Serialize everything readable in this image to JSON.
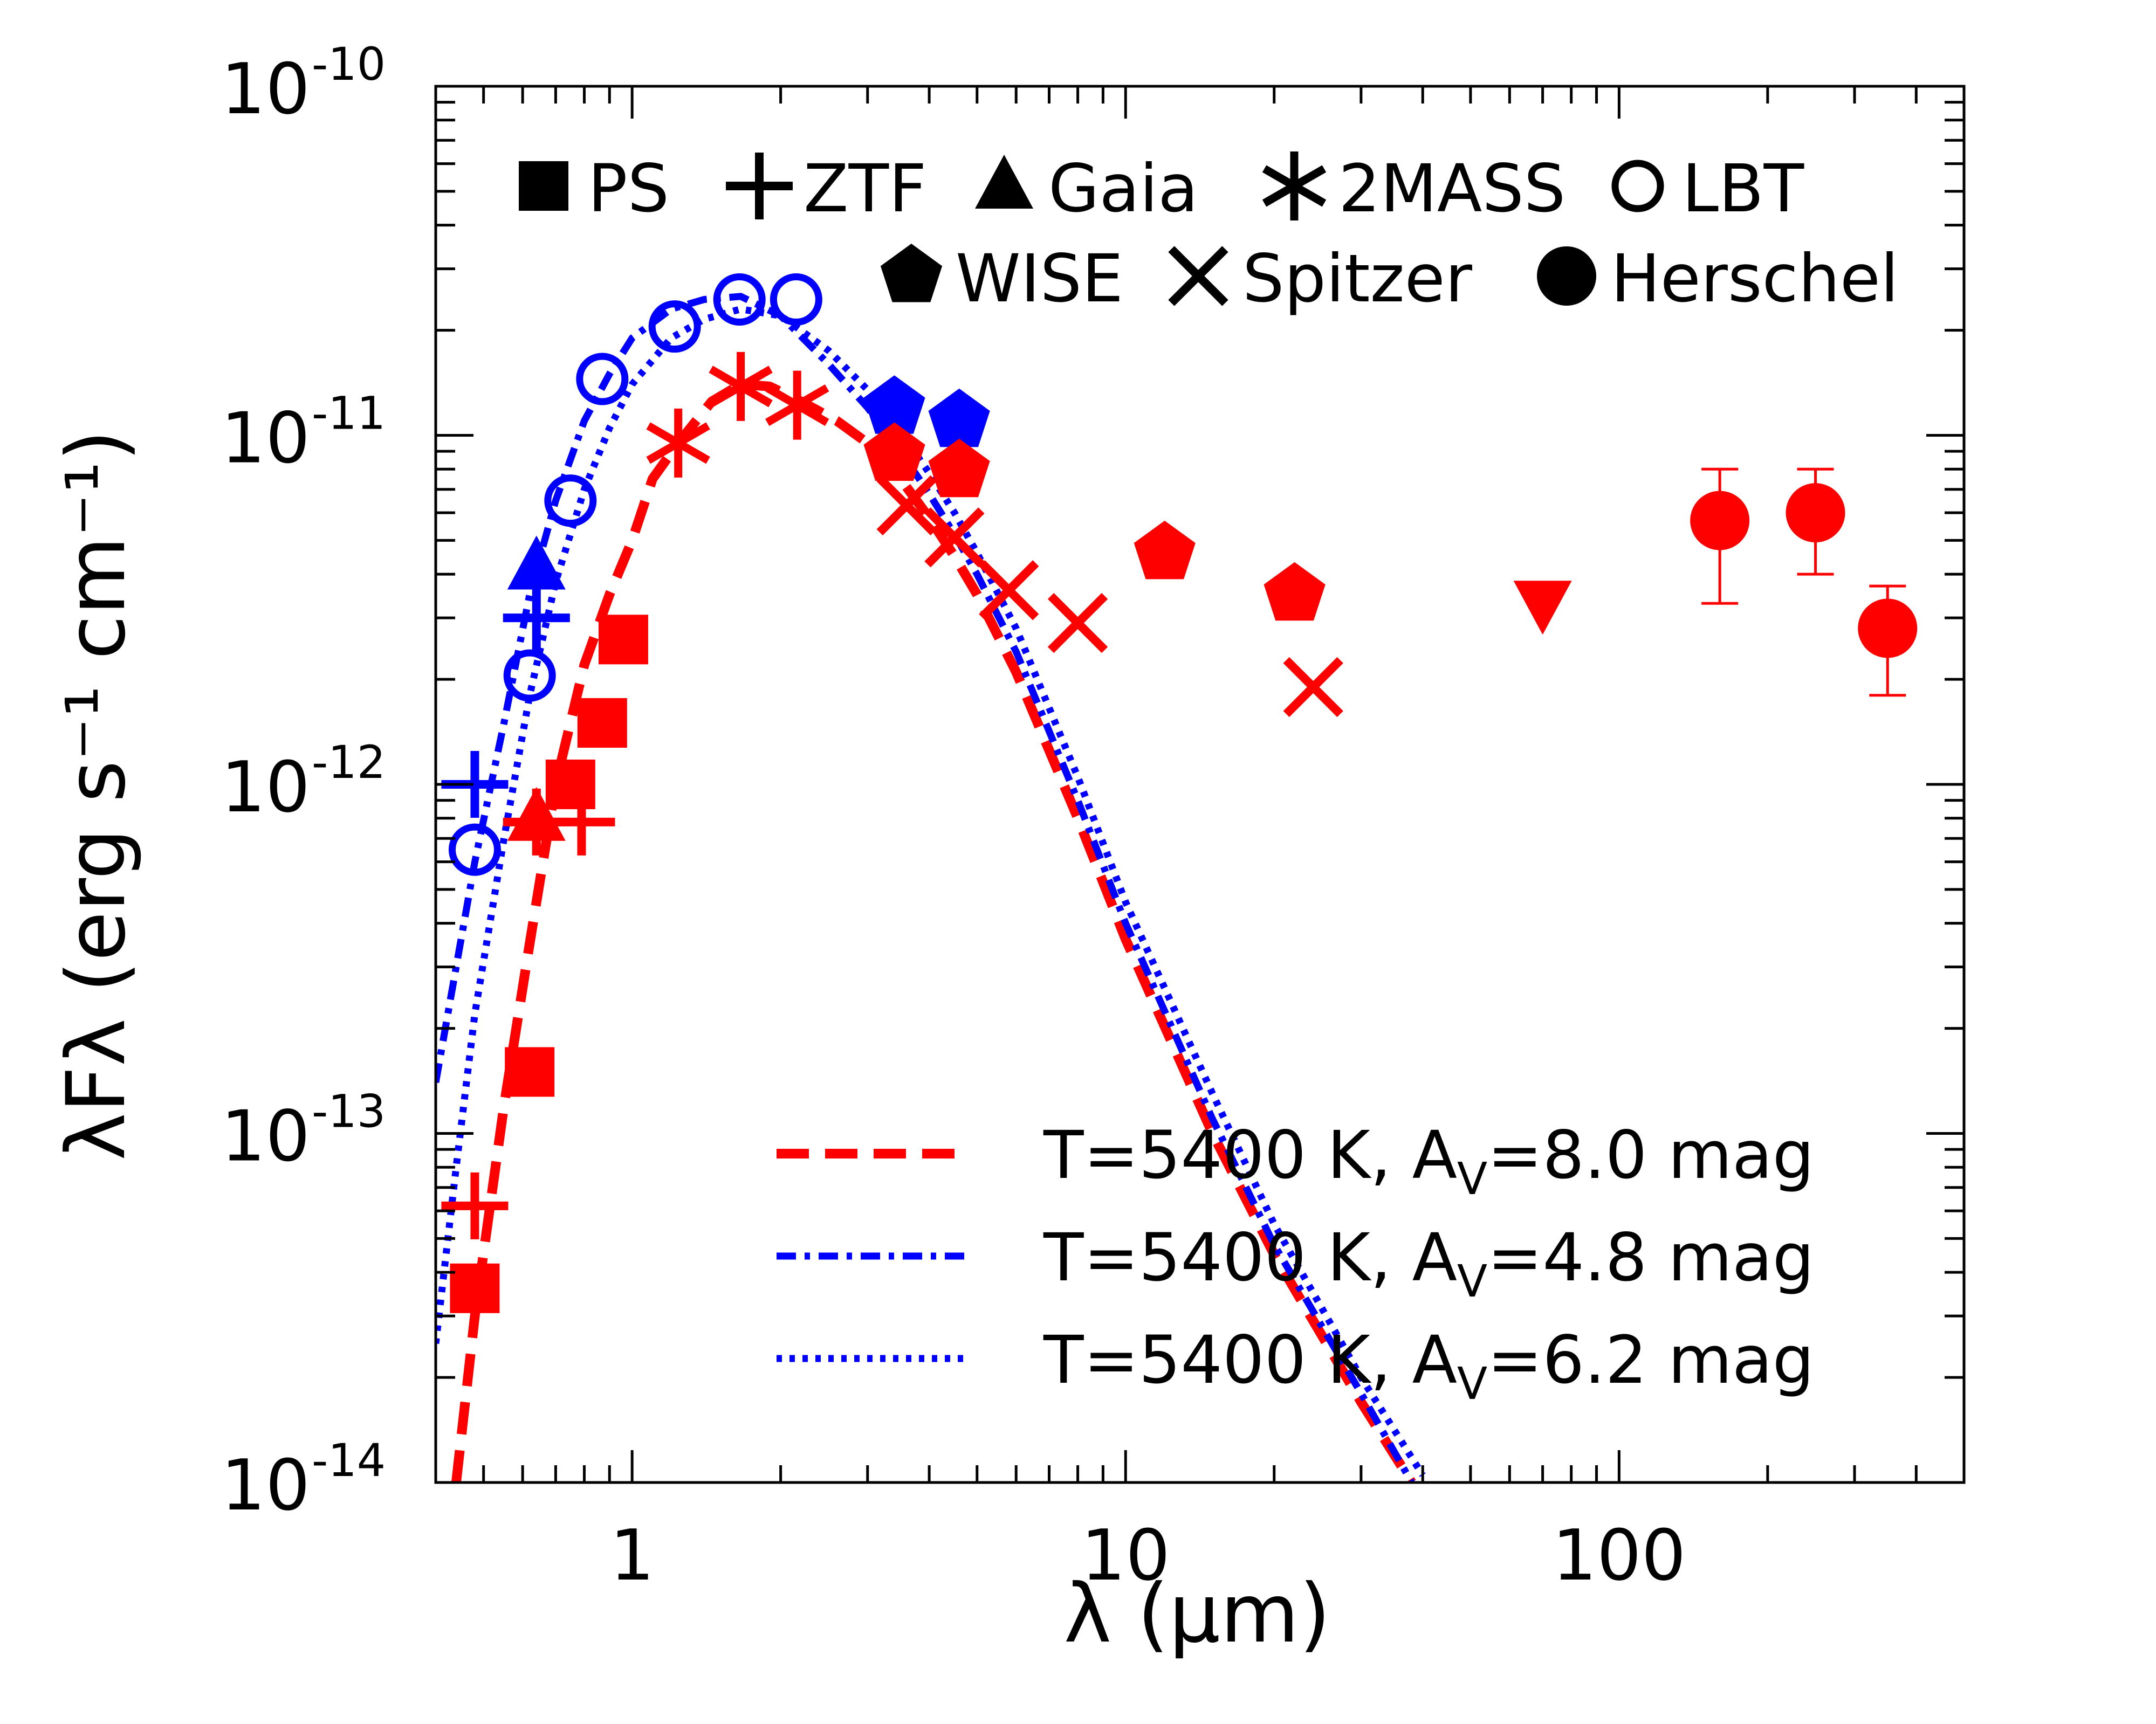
{
  "chart_data": {
    "type": "scatter",
    "title": "",
    "xlabel": "λ (μm)",
    "ylabel": "λFλ (erg s⁻¹ cm⁻¹)",
    "xscale": "log",
    "yscale": "log",
    "xlim": [
      0.4,
      500
    ],
    "ylim": [
      1e-14,
      1e-10
    ],
    "x_ticks": [
      {
        "value": 1,
        "label": "1"
      },
      {
        "value": 10,
        "label": "10"
      },
      {
        "value": 100,
        "label": "100"
      }
    ],
    "y_ticks": [
      {
        "value": 1e-10,
        "base": "10",
        "exp": "-10"
      },
      {
        "value": 1e-11,
        "base": "10",
        "exp": "-11"
      },
      {
        "value": 1e-12,
        "base": "10",
        "exp": "-12"
      },
      {
        "value": 1e-13,
        "base": "10",
        "exp": "-13"
      },
      {
        "value": 1e-14,
        "base": "10",
        "exp": "-14"
      }
    ],
    "colors": {
      "red": "#ff0000",
      "blue": "#0000ff",
      "black": "#000000"
    },
    "marker_legend": [
      {
        "label": "PS",
        "marker": "square"
      },
      {
        "label": "ZTF",
        "marker": "plus"
      },
      {
        "label": "Gaia",
        "marker": "triangle"
      },
      {
        "label": "2MASS",
        "marker": "star"
      },
      {
        "label": "LBT",
        "marker": "open-circle"
      },
      {
        "label": "WISE",
        "marker": "pentagon"
      },
      {
        "label": "Spitzer",
        "marker": "x"
      },
      {
        "label": "Herschel",
        "marker": "circle"
      }
    ],
    "line_legend": [
      {
        "text": "T=5400 K, A",
        "sub": "V",
        "text2": "=8.0 mag",
        "color": "#ff0000",
        "style": "dashed"
      },
      {
        "text": "T=5400 K, A",
        "sub": "V",
        "text2": "=4.8 mag",
        "color": "#0000ff",
        "style": "dashdot"
      },
      {
        "text": "T=5400 K, A",
        "sub": "V",
        "text2": "=6.2 mag",
        "color": "#0000ff",
        "style": "dotted"
      }
    ],
    "points": [
      {
        "survey": "PS",
        "marker": "square",
        "color": "red",
        "x": [
          0.48,
          0.62,
          0.75,
          0.87,
          0.96
        ],
        "y": [
          3.6e-14,
          1.5e-13,
          1e-12,
          1.5e-12,
          2.6e-12
        ]
      },
      {
        "survey": "ZTF",
        "marker": "plus",
        "color": "red",
        "x": [
          0.48,
          0.64,
          0.79
        ],
        "y": [
          6.2e-14,
          7.8e-13,
          7.8e-13
        ]
      },
      {
        "survey": "ZTF",
        "marker": "plus",
        "color": "blue",
        "x": [
          0.48,
          0.64
        ],
        "y": [
          1e-12,
          3e-12
        ]
      },
      {
        "survey": "Gaia",
        "marker": "triangle",
        "color": "red",
        "x": [
          0.64
        ],
        "y": [
          8e-13
        ]
      },
      {
        "survey": "Gaia",
        "marker": "triangle",
        "color": "blue",
        "x": [
          0.64
        ],
        "y": [
          4.2e-12
        ]
      },
      {
        "survey": "2MASS",
        "marker": "star",
        "color": "red",
        "x": [
          1.24,
          1.66,
          2.16
        ],
        "y": [
          9.5e-12,
          1.38e-11,
          1.22e-11
        ]
      },
      {
        "survey": "LBT",
        "marker": "open-circle",
        "color": "blue",
        "x": [
          0.48,
          0.62,
          0.75,
          0.87,
          1.22,
          1.65,
          2.15
        ],
        "y": [
          6.5e-13,
          2.05e-12,
          6.5e-12,
          1.45e-11,
          2.05e-11,
          2.45e-11,
          2.45e-11
        ]
      },
      {
        "survey": "WISE",
        "marker": "pentagon",
        "color": "blue",
        "x": [
          3.4,
          4.6
        ],
        "y": [
          1.2e-11,
          1.1e-11
        ]
      },
      {
        "survey": "WISE",
        "marker": "pentagon",
        "color": "red",
        "x": [
          3.4,
          4.6,
          12,
          22
        ],
        "y": [
          8.8e-12,
          7.9e-12,
          4.6e-12,
          3.5e-12
        ]
      },
      {
        "survey": "Spitzer",
        "marker": "x",
        "color": "red",
        "x": [
          3.6,
          4.5,
          5.8,
          8.0,
          24
        ],
        "y": [
          6.3e-12,
          5.1e-12,
          3.6e-12,
          2.9e-12,
          1.9e-12
        ]
      },
      {
        "survey": "Herschel",
        "marker": "triangle-down",
        "color": "red",
        "x": [
          70
        ],
        "y": [
          3.3e-12
        ]
      },
      {
        "survey": "Herschel",
        "marker": "circle",
        "color": "red",
        "x": [
          160,
          250,
          350
        ],
        "y": [
          5.7e-12,
          6e-12,
          2.8e-12
        ],
        "err_lo": [
          3.3e-12,
          4e-12,
          1.8e-12
        ],
        "err_hi": [
          8e-12,
          8e-12,
          3.7e-12
        ]
      }
    ],
    "series": [
      {
        "name": "T=5400 K, A_V=8.0 mag",
        "color": "#ff0000",
        "style": "dashed",
        "x": [
          0.44,
          0.48,
          0.55,
          0.62,
          0.7,
          0.8,
          0.9,
          1.0,
          1.1,
          1.24,
          1.45,
          1.66,
          1.9,
          2.2,
          2.6,
          3.0,
          3.5,
          4.0,
          4.5,
          5.0,
          6,
          8,
          10,
          15,
          20,
          30,
          38
        ],
        "y": [
          1e-14,
          3e-14,
          1.2e-13,
          3.5e-13,
          1e-12,
          2.2e-12,
          3.5e-12,
          5e-12,
          7.5e-12,
          9.5e-12,
          1.25e-11,
          1.4e-11,
          1.38e-11,
          1.25e-11,
          1.1e-11,
          9.5e-12,
          7.5e-12,
          5.8e-12,
          4.5e-12,
          3.5e-12,
          2.1e-12,
          8e-13,
          3.6e-13,
          1e-13,
          4.5e-14,
          1.7e-14,
          1e-14
        ]
      },
      {
        "name": "T=5400 K, A_V=4.8 mag",
        "color": "#0000ff",
        "style": "dashdot",
        "x": [
          0.4,
          0.44,
          0.48,
          0.55,
          0.62,
          0.7,
          0.8,
          0.9,
          1.0,
          1.2,
          1.4,
          1.66,
          2.0,
          2.5,
          3.0,
          3.5,
          4.0,
          4.5,
          5.0,
          6,
          8,
          10,
          15,
          20,
          30,
          38
        ],
        "y": [
          1.4e-13,
          3e-13,
          6e-13,
          1.5e-12,
          3.5e-12,
          6.5e-12,
          1.1e-11,
          1.5e-11,
          1.9e-11,
          2.3e-11,
          2.45e-11,
          2.5e-11,
          2.2e-11,
          1.6e-11,
          1.2e-11,
          9e-12,
          6.8e-12,
          5.2e-12,
          4e-12,
          2.4e-12,
          9e-13,
          4e-13,
          1.1e-13,
          4.8e-14,
          1.8e-14,
          1e-14
        ]
      },
      {
        "name": "T=5400 K, A_V=6.2 mag",
        "color": "#0000ff",
        "style": "dotted",
        "x": [
          0.4,
          0.44,
          0.48,
          0.55,
          0.62,
          0.7,
          0.8,
          0.9,
          1.0,
          1.2,
          1.4,
          1.66,
          2.0,
          2.5,
          3.0,
          3.5,
          4.0,
          4.5,
          5.0,
          6,
          8,
          10,
          15,
          20,
          30,
          40
        ],
        "y": [
          2.5e-14,
          8e-14,
          2.2e-13,
          7e-13,
          1.8e-12,
          3.8e-12,
          7e-12,
          1.05e-11,
          1.4e-11,
          1.9e-11,
          2.15e-11,
          2.3e-11,
          2.2e-11,
          1.75e-11,
          1.35e-11,
          1.02e-11,
          7.8e-12,
          6e-12,
          4.6e-12,
          2.8e-12,
          1.05e-12,
          4.6e-13,
          1.3e-13,
          5.5e-14,
          2e-14,
          1.05e-14
        ]
      }
    ]
  }
}
